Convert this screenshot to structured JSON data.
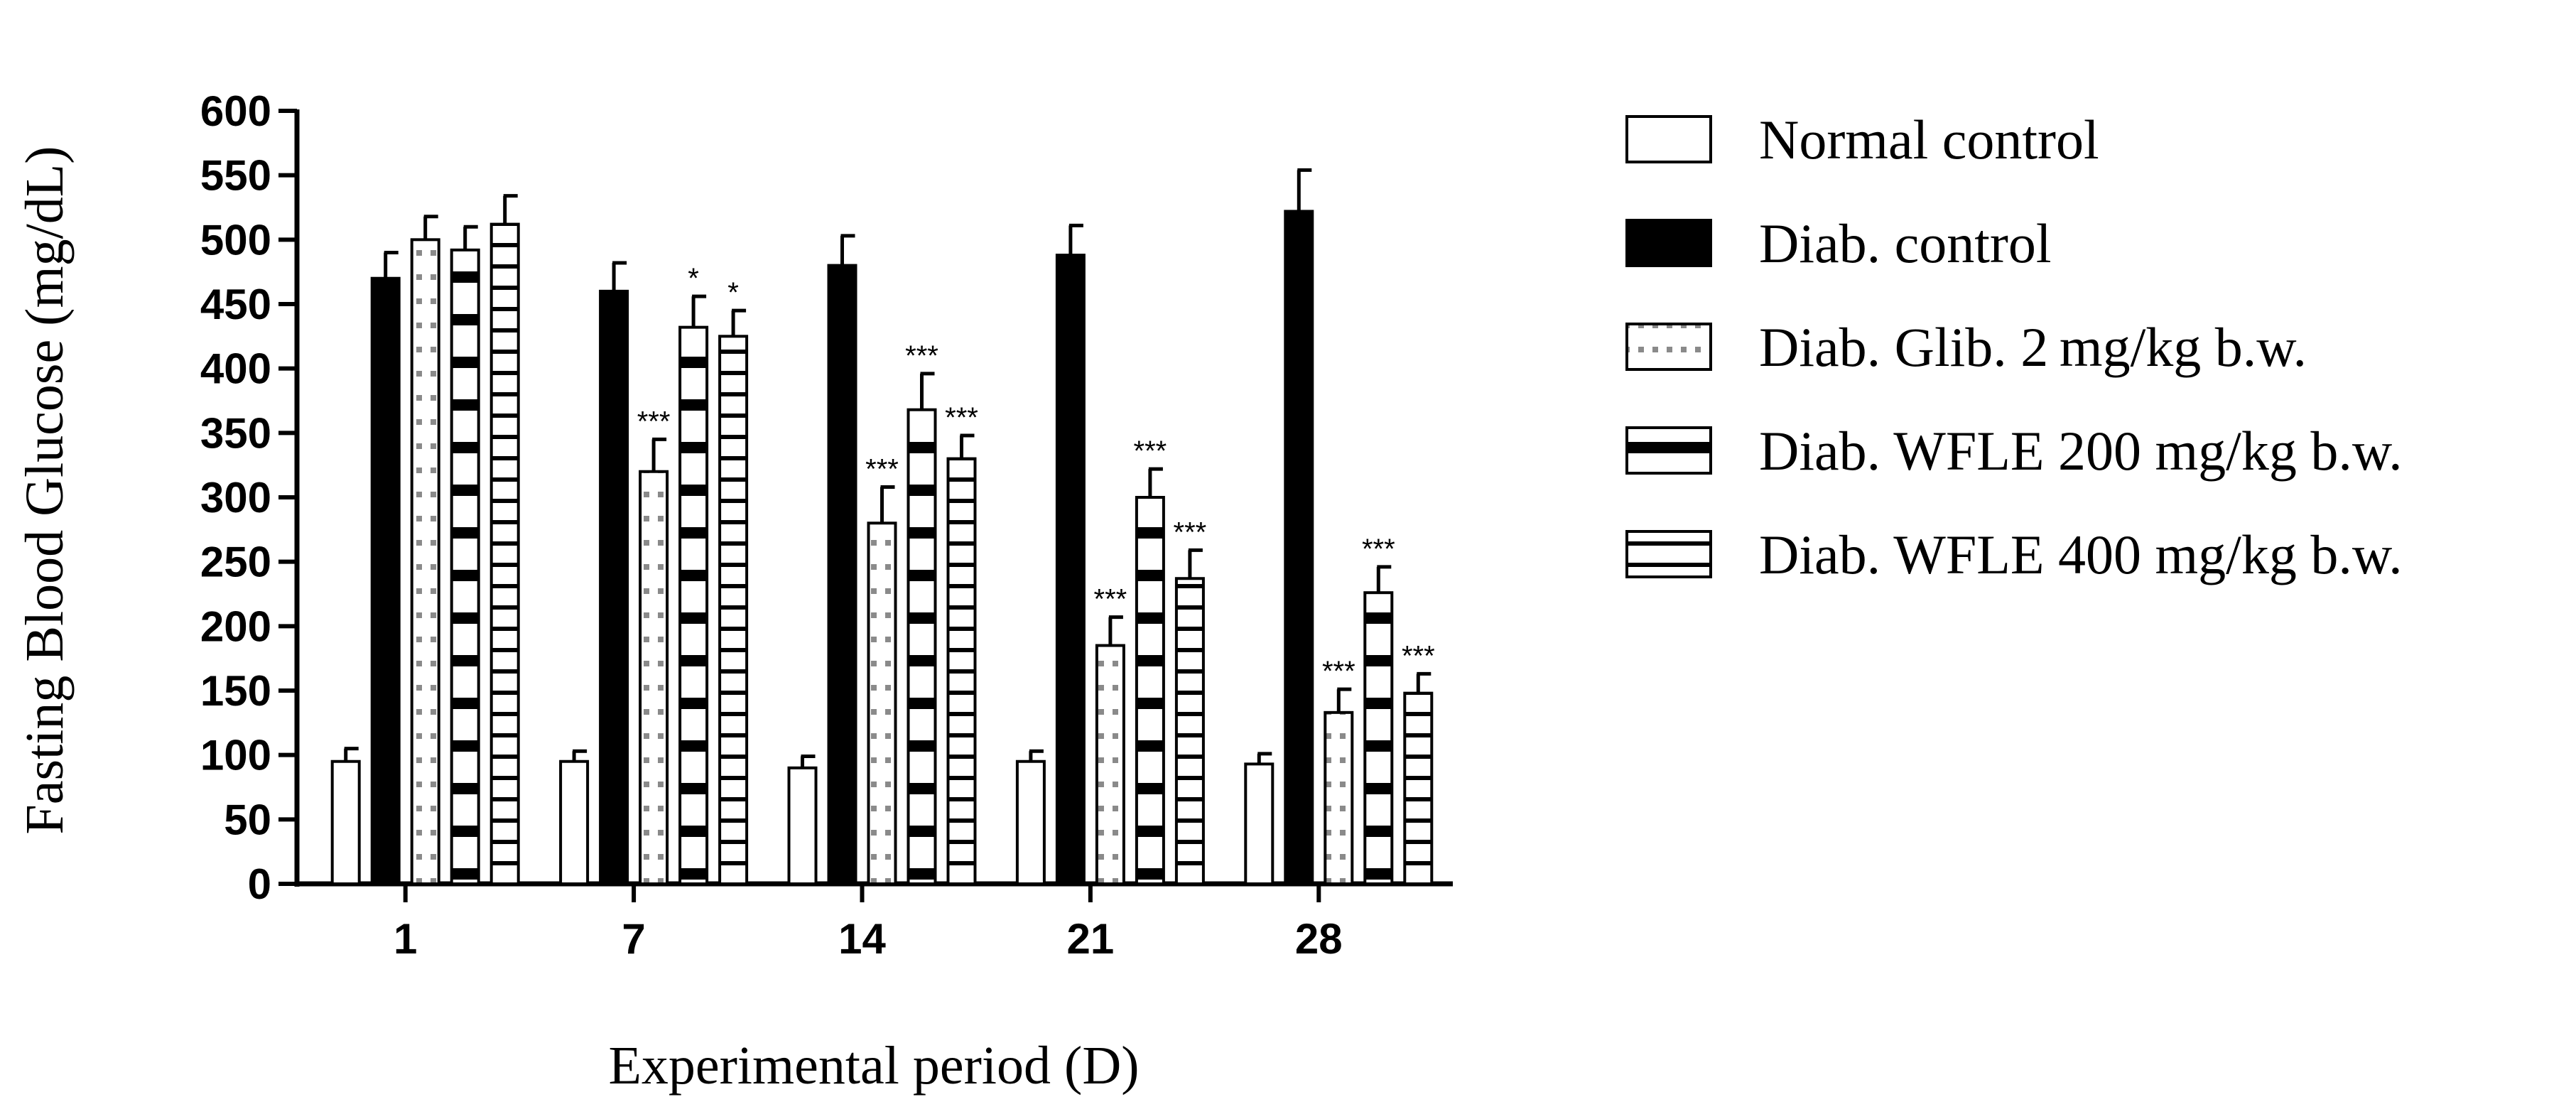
{
  "chart_data": {
    "type": "bar",
    "title": "",
    "xlabel": "Experimental period (D)",
    "ylabel": "Fasting Blood Glucose (mg/dL)",
    "ylim": [
      0,
      600
    ],
    "yticks": [
      0,
      50,
      100,
      150,
      200,
      250,
      300,
      350,
      400,
      450,
      500,
      550,
      600
    ],
    "categories": [
      "1",
      "7",
      "14",
      "21",
      "28"
    ],
    "legend_position": "right",
    "series": [
      {
        "name": "Normal control",
        "pattern": "open",
        "values": [
          95,
          95,
          90,
          95,
          93
        ],
        "errors": [
          10,
          8,
          9,
          8,
          8
        ],
        "significance": [
          "",
          "",
          "",
          "",
          ""
        ]
      },
      {
        "name": "Diab. control",
        "pattern": "solid",
        "values": [
          470,
          460,
          480,
          488,
          522
        ],
        "errors": [
          20,
          22,
          23,
          23,
          32
        ],
        "significance": [
          "",
          "",
          "",
          "",
          ""
        ]
      },
      {
        "name": "Diab. Glib. 2 mg/kg b.w.",
        "pattern": "dots",
        "values": [
          500,
          320,
          280,
          185,
          null
        ],
        "errors": [
          18,
          25,
          28,
          22,
          null
        ],
        "significance": [
          "",
          "***",
          "***",
          "***",
          "***"
        ]
      },
      {
        "name": "Diab. WFLE 200 mg/kg b.w.",
        "pattern": "dashes-bold",
        "values": [
          492,
          432,
          368,
          300,
          226
        ],
        "errors": [
          18,
          24,
          28,
          22,
          20
        ],
        "significance": [
          "",
          "*",
          "***",
          "***",
          "***"
        ]
      },
      {
        "name": "Diab. WFLE  400 mg/kg b.w.",
        "pattern": "hlines",
        "values": [
          512,
          425,
          330,
          237,
          148
        ],
        "errors": [
          22,
          20,
          18,
          22,
          15
        ],
        "significance": [
          "",
          "*",
          "***",
          "***",
          "***"
        ]
      }
    ],
    "note_day28_glib": {
      "value": 133,
      "error": 18
    }
  }
}
